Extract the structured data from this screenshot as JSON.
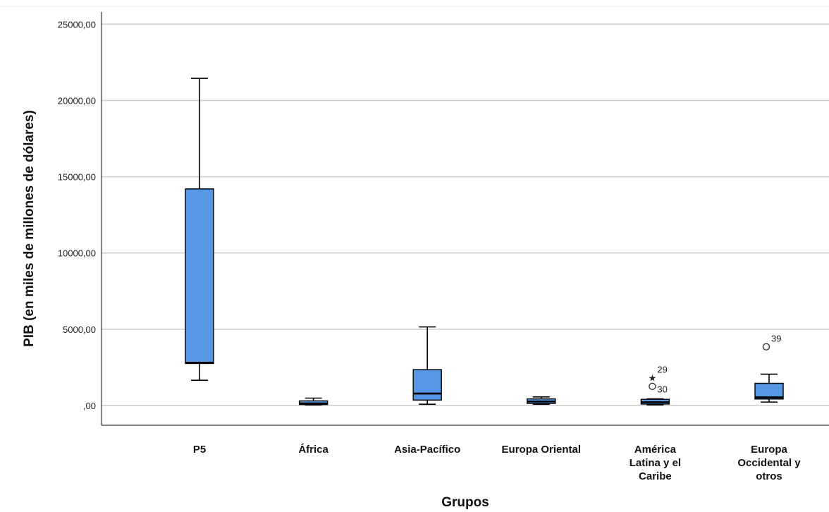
{
  "chart_data": {
    "type": "boxplot",
    "title": "",
    "xlabel": "Grupos",
    "ylabel": "PIB (en miles de millones de dólares)",
    "ylim": [
      -1300,
      25800
    ],
    "y_ticks": [
      0,
      5000,
      10000,
      15000,
      20000,
      25000
    ],
    "y_tick_labels": [
      ",00",
      "5000,00",
      "10000,00",
      "15000,00",
      "20000,00",
      "25000,00"
    ],
    "grid": true,
    "box_color": "#5597e4",
    "categories": [
      {
        "lines": [
          "P5"
        ]
      },
      {
        "lines": [
          "África"
        ]
      },
      {
        "lines": [
          "Asia-Pacífico"
        ]
      },
      {
        "lines": [
          "Europa Oriental"
        ]
      },
      {
        "lines": [
          "América",
          "Latina y el",
          "Caribe"
        ]
      },
      {
        "lines": [
          "Europa",
          "Occidental y",
          "otros"
        ]
      }
    ],
    "boxes": [
      {
        "min": 1650,
        "q1": 2750,
        "median": 2800,
        "q3": 14200,
        "max": 21450,
        "outliers": []
      },
      {
        "min": 30,
        "q1": 60,
        "median": 130,
        "q3": 300,
        "max": 480,
        "outliers": []
      },
      {
        "min": 80,
        "q1": 350,
        "median": 780,
        "q3": 2350,
        "max": 5150,
        "outliers": []
      },
      {
        "min": 80,
        "q1": 130,
        "median": 260,
        "q3": 430,
        "max": 560,
        "outliers": []
      },
      {
        "min": 40,
        "q1": 90,
        "median": 210,
        "q3": 400,
        "max": 430,
        "outliers": [
          {
            "value": 1250,
            "marker": "circle",
            "label": ""
          },
          {
            "value": 1820,
            "marker": "star",
            "label": "29"
          },
          {
            "value": 520,
            "marker": "none",
            "label": "30"
          }
        ]
      },
      {
        "min": 220,
        "q1": 420,
        "median": 530,
        "q3": 1450,
        "max": 2050,
        "outliers": [
          {
            "value": 3850,
            "marker": "circle",
            "label": "39"
          }
        ]
      }
    ]
  }
}
